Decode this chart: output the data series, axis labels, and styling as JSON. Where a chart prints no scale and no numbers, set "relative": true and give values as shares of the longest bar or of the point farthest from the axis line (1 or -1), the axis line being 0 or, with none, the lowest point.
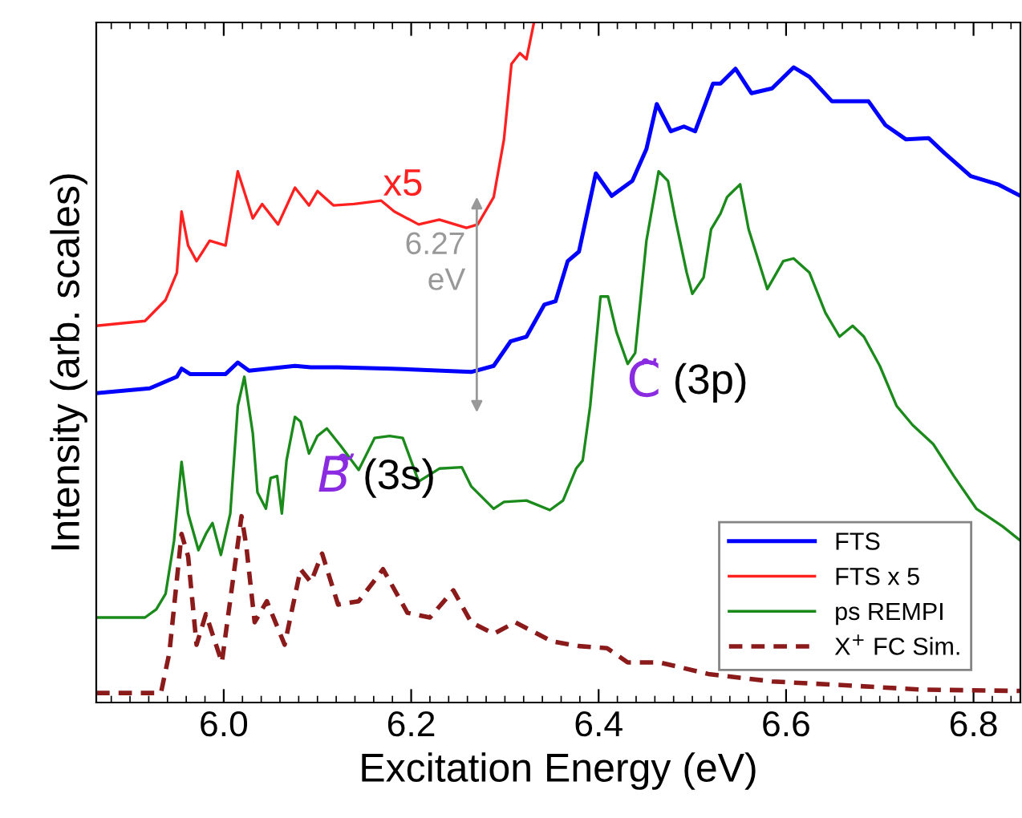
{
  "chart_data": {
    "type": "line",
    "relative": true,
    "xlabel": "Excitation Energy (eV)",
    "ylabel": "Intensity (arb. scales)",
    "xlim": [
      5.864,
      6.85
    ],
    "xticks": [
      {
        "value": 6.0,
        "label": "6.0"
      },
      {
        "value": 6.2,
        "label": "6.2"
      },
      {
        "value": 6.4,
        "label": "6.4"
      },
      {
        "value": 6.6,
        "label": "6.6"
      },
      {
        "value": 6.8,
        "label": "6.8"
      }
    ],
    "tick_labels": "x",
    "grid": false,
    "legend": "bottom right",
    "marker": "none",
    "series": [
      {
        "name": "FTS",
        "color": "#0000ff",
        "line_style": "solid",
        "x": [
          5.864,
          5.921,
          5.95,
          5.955,
          5.964,
          6.002,
          6.015,
          6.027,
          6.076,
          6.093,
          6.122,
          6.179,
          6.264,
          6.288,
          6.306,
          6.323,
          6.342,
          6.354,
          6.367,
          6.379,
          6.397,
          6.414,
          6.436,
          6.451,
          6.462,
          6.477,
          6.491,
          6.503,
          6.522,
          6.53,
          6.546,
          6.563,
          6.585,
          6.608,
          6.625,
          6.649,
          6.671,
          6.688,
          6.706,
          6.728,
          6.752,
          6.769,
          6.797,
          6.826,
          6.85
        ],
        "values": [
          0.455,
          0.462,
          0.479,
          0.491,
          0.483,
          0.483,
          0.5,
          0.488,
          0.495,
          0.493,
          0.493,
          0.491,
          0.486,
          0.495,
          0.531,
          0.538,
          0.585,
          0.59,
          0.649,
          0.663,
          0.778,
          0.745,
          0.767,
          0.814,
          0.88,
          0.84,
          0.847,
          0.84,
          0.91,
          0.91,
          0.932,
          0.896,
          0.903,
          0.934,
          0.92,
          0.884,
          0.884,
          0.884,
          0.849,
          0.828,
          0.83,
          0.808,
          0.774,
          0.762,
          0.745
        ]
      },
      {
        "name": "FTS x 5",
        "color": "#ff2020",
        "line_style": "solid",
        "x": [
          5.864,
          5.916,
          5.938,
          5.95,
          5.955,
          5.962,
          5.971,
          5.985,
          6.002,
          6.015,
          6.031,
          6.041,
          6.058,
          6.076,
          6.091,
          6.1,
          6.117,
          6.139,
          6.168,
          6.182,
          6.208,
          6.23,
          6.259,
          6.271,
          6.288,
          6.299,
          6.307,
          6.316,
          6.323,
          6.331
        ],
        "values": [
          0.554,
          0.561,
          0.592,
          0.632,
          0.722,
          0.672,
          0.649,
          0.679,
          0.672,
          0.781,
          0.712,
          0.733,
          0.703,
          0.757,
          0.731,
          0.752,
          0.731,
          0.733,
          0.738,
          0.722,
          0.703,
          0.71,
          0.698,
          0.703,
          0.743,
          0.828,
          0.939,
          0.955,
          0.946,
          1.0
        ]
      },
      {
        "name": "ps REMPI",
        "color": "#1a8a1a",
        "line_style": "solid",
        "x": [
          5.864,
          5.916,
          5.928,
          5.938,
          5.947,
          5.955,
          5.962,
          5.973,
          5.981,
          5.988,
          5.997,
          6.007,
          6.015,
          6.022,
          6.031,
          6.036,
          6.045,
          6.05,
          6.057,
          6.062,
          6.067,
          6.076,
          6.082,
          6.091,
          6.1,
          6.11,
          6.125,
          6.144,
          6.161,
          6.177,
          6.191,
          6.208,
          6.23,
          6.254,
          6.264,
          6.288,
          6.299,
          6.323,
          6.348,
          6.362,
          6.376,
          6.383,
          6.391,
          6.402,
          6.41,
          6.419,
          6.431,
          6.439,
          6.451,
          6.464,
          6.474,
          6.482,
          6.494,
          6.5,
          6.512,
          6.52,
          6.53,
          6.537,
          6.542,
          6.551,
          6.56,
          6.58,
          6.597,
          6.608,
          6.625,
          6.642,
          6.657,
          6.671,
          6.683,
          6.7,
          6.718,
          6.735,
          6.757,
          6.779,
          6.803,
          6.831,
          6.85
        ],
        "values": [
          0.125,
          0.125,
          0.137,
          0.16,
          0.238,
          0.354,
          0.278,
          0.224,
          0.248,
          0.264,
          0.217,
          0.278,
          0.436,
          0.479,
          0.396,
          0.309,
          0.285,
          0.33,
          0.333,
          0.278,
          0.356,
          0.42,
          0.413,
          0.366,
          0.392,
          0.403,
          0.377,
          0.342,
          0.389,
          0.392,
          0.389,
          0.325,
          0.344,
          0.346,
          0.318,
          0.285,
          0.295,
          0.297,
          0.283,
          0.297,
          0.344,
          0.356,
          0.436,
          0.597,
          0.597,
          0.545,
          0.498,
          0.514,
          0.679,
          0.781,
          0.767,
          0.71,
          0.632,
          0.601,
          0.625,
          0.696,
          0.719,
          0.743,
          0.75,
          0.762,
          0.696,
          0.608,
          0.649,
          0.653,
          0.632,
          0.573,
          0.538,
          0.554,
          0.538,
          0.495,
          0.436,
          0.408,
          0.38,
          0.333,
          0.285,
          0.259,
          0.238
        ]
      },
      {
        "name": "X$^{+}$ FC Sim.",
        "color": "#8b1a1a",
        "line_style": "dashed",
        "x": [
          5.864,
          5.933,
          5.942,
          5.955,
          5.962,
          5.971,
          5.981,
          5.998,
          6.019,
          6.024,
          6.033,
          6.046,
          6.065,
          6.082,
          6.093,
          6.105,
          6.122,
          6.144,
          6.17,
          6.196,
          6.22,
          6.245,
          6.264,
          6.288,
          6.311,
          6.35,
          6.379,
          6.409,
          6.431,
          6.465,
          6.517,
          6.585,
          6.654,
          6.745,
          6.85
        ],
        "values": [
          0.014,
          0.014,
          0.073,
          0.248,
          0.215,
          0.085,
          0.13,
          0.059,
          0.274,
          0.231,
          0.118,
          0.149,
          0.085,
          0.196,
          0.177,
          0.219,
          0.144,
          0.149,
          0.196,
          0.132,
          0.125,
          0.165,
          0.118,
          0.101,
          0.118,
          0.09,
          0.083,
          0.08,
          0.059,
          0.059,
          0.042,
          0.031,
          0.026,
          0.019,
          0.017
        ]
      }
    ],
    "annotations": [
      "x5",
      "6.27 eV",
      "B̃ (3s)",
      "C̃ (3p)"
    ]
  }
}
